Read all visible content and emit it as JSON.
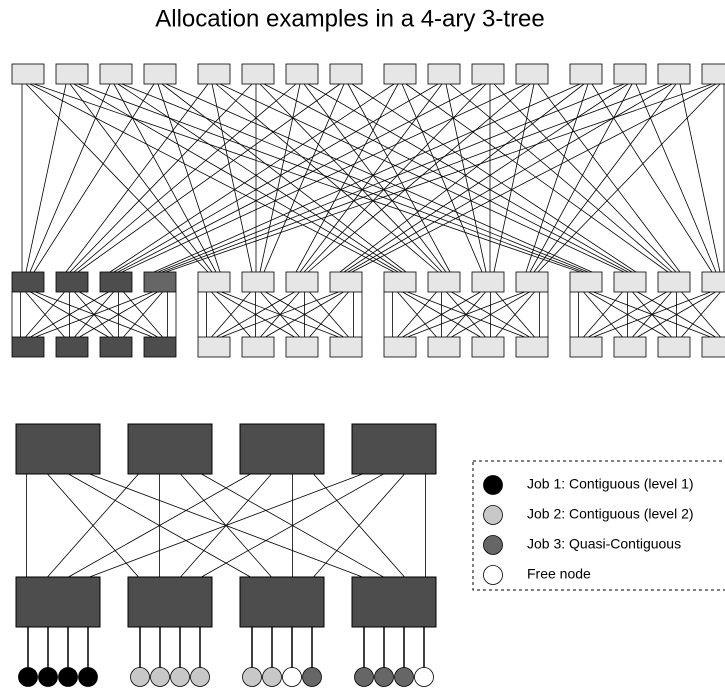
{
  "title": "Allocation examples in a 4-ary 3-tree",
  "legend": {
    "items": [
      {
        "label": "Job 1: Contiguous (level 1)"
      },
      {
        "label": "Job 2: Contiguous (level 2)"
      },
      {
        "label": "Job 3: Quasi-Contiguous"
      },
      {
        "label": "Free node"
      }
    ]
  }
}
